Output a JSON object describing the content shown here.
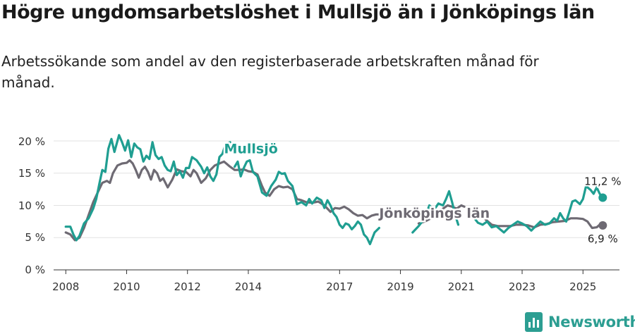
{
  "header": {
    "title": "Högre ungdomsarbetslöshet i Mullsjö än i Jönköpings län",
    "subtitle": "Arbetssökande som andel av den registerbaserade arbetskraften månad för månad."
  },
  "brand": {
    "name": "Newsworthy",
    "icon": "bar-chart-icon",
    "color": "#2c9e92"
  },
  "chart_data": {
    "type": "line",
    "title": "Högre ungdomsarbetslöshet i Mullsjö än i Jönköpings län",
    "subtitle": "Arbetssökande som andel av den registerbaserade arbetskraften månad för månad.",
    "xlabel": "",
    "ylabel": "",
    "x_ticks": [
      "2008",
      "2010",
      "2012",
      "2014",
      "2017",
      "2019",
      "2021",
      "2023",
      "2025"
    ],
    "y_ticks": [
      "0 %",
      "5 %",
      "10 %",
      "15 %",
      "20 %"
    ],
    "xlim": [
      2007.6,
      2026.2
    ],
    "ylim": [
      0,
      20
    ],
    "grid": true,
    "series": [
      {
        "name": "Mullsjö",
        "color": "#1f9e91",
        "end_label": "11,2 %",
        "points": [
          [
            2008.0,
            6.7
          ],
          [
            2008.15,
            6.7
          ],
          [
            2008.25,
            5.5
          ],
          [
            2008.35,
            4.6
          ],
          [
            2008.45,
            5.3
          ],
          [
            2008.6,
            7.2
          ],
          [
            2008.75,
            8.0
          ],
          [
            2008.9,
            9.5
          ],
          [
            2009.0,
            11.0
          ],
          [
            2009.1,
            13.3
          ],
          [
            2009.2,
            15.5
          ],
          [
            2009.3,
            15.2
          ],
          [
            2009.4,
            18.8
          ],
          [
            2009.5,
            20.3
          ],
          [
            2009.6,
            18.3
          ],
          [
            2009.75,
            20.9
          ],
          [
            2009.85,
            19.8
          ],
          [
            2009.95,
            18.5
          ],
          [
            2010.05,
            20.1
          ],
          [
            2010.15,
            17.5
          ],
          [
            2010.25,
            19.6
          ],
          [
            2010.35,
            19.0
          ],
          [
            2010.45,
            18.7
          ],
          [
            2010.55,
            16.8
          ],
          [
            2010.65,
            17.7
          ],
          [
            2010.75,
            17.2
          ],
          [
            2010.85,
            19.8
          ],
          [
            2010.95,
            17.8
          ],
          [
            2011.05,
            17.2
          ],
          [
            2011.15,
            17.5
          ],
          [
            2011.25,
            16.2
          ],
          [
            2011.35,
            15.5
          ],
          [
            2011.45,
            15.3
          ],
          [
            2011.55,
            16.8
          ],
          [
            2011.65,
            14.7
          ],
          [
            2011.75,
            15.3
          ],
          [
            2011.85,
            14.3
          ],
          [
            2011.95,
            15.8
          ],
          [
            2012.05,
            15.8
          ],
          [
            2012.15,
            17.5
          ],
          [
            2012.3,
            17.0
          ],
          [
            2012.45,
            16.0
          ],
          [
            2012.55,
            15.0
          ],
          [
            2012.65,
            15.9
          ],
          [
            2012.75,
            14.5
          ],
          [
            2012.85,
            13.8
          ],
          [
            2012.95,
            14.8
          ],
          [
            2013.05,
            17.5
          ],
          [
            2013.15,
            18.0
          ],
          [
            2013.25,
            19.5
          ],
          [
            2013.4,
            19.8
          ]
        ],
        "points_2": [
          [
            2013.55,
            16.0
          ],
          [
            2013.65,
            16.8
          ],
          [
            2013.75,
            14.5
          ],
          [
            2013.85,
            15.8
          ],
          [
            2013.95,
            16.8
          ],
          [
            2014.05,
            17.0
          ],
          [
            2014.15,
            15.2
          ],
          [
            2014.3,
            14.5
          ],
          [
            2014.45,
            12.0
          ],
          [
            2014.6,
            11.5
          ],
          [
            2014.75,
            13.0
          ],
          [
            2014.9,
            14.0
          ],
          [
            2015.0,
            15.2
          ],
          [
            2015.1,
            14.9
          ],
          [
            2015.2,
            15.0
          ],
          [
            2015.3,
            13.8
          ],
          [
            2015.45,
            13.0
          ],
          [
            2015.6,
            10.2
          ],
          [
            2015.75,
            10.5
          ],
          [
            2015.9,
            10.0
          ],
          [
            2016.0,
            11.0
          ],
          [
            2016.1,
            10.3
          ],
          [
            2016.25,
            11.2
          ],
          [
            2016.4,
            10.8
          ],
          [
            2016.5,
            9.6
          ],
          [
            2016.6,
            10.8
          ],
          [
            2016.7,
            10.0
          ],
          [
            2016.8,
            8.8
          ],
          [
            2016.9,
            8.2
          ],
          [
            2017.0,
            7.0
          ],
          [
            2017.1,
            6.5
          ],
          [
            2017.2,
            7.2
          ],
          [
            2017.3,
            7.0
          ],
          [
            2017.4,
            6.3
          ],
          [
            2017.5,
            6.8
          ],
          [
            2017.6,
            7.5
          ],
          [
            2017.7,
            7.0
          ],
          [
            2017.8,
            5.5
          ],
          [
            2017.9,
            5.0
          ],
          [
            2018.0,
            4.0
          ],
          [
            2018.15,
            5.8
          ],
          [
            2018.3,
            6.5
          ]
        ],
        "points_3": [
          [
            2019.4,
            5.8
          ],
          [
            2019.6,
            6.8
          ],
          [
            2019.8,
            8.0
          ],
          [
            2019.95,
            10.0
          ],
          [
            2020.1,
            9.3
          ],
          [
            2020.25,
            10.3
          ],
          [
            2020.4,
            10.0
          ],
          [
            2020.5,
            11.0
          ],
          [
            2020.6,
            12.2
          ],
          [
            2020.7,
            10.5
          ],
          [
            2020.8,
            8.5
          ],
          [
            2020.9,
            7.0
          ]
        ],
        "points_4": [
          [
            2021.4,
            8.2
          ],
          [
            2021.55,
            7.3
          ],
          [
            2021.7,
            7.0
          ],
          [
            2021.85,
            7.5
          ],
          [
            2022.0,
            6.6
          ],
          [
            2022.15,
            6.8
          ],
          [
            2022.3,
            6.2
          ],
          [
            2022.4,
            5.8
          ],
          [
            2022.55,
            6.5
          ],
          [
            2022.7,
            7.0
          ],
          [
            2022.85,
            7.5
          ],
          [
            2023.0,
            7.2
          ],
          [
            2023.15,
            6.8
          ],
          [
            2023.3,
            6.1
          ],
          [
            2023.45,
            6.8
          ],
          [
            2023.6,
            7.5
          ],
          [
            2023.75,
            7.0
          ],
          [
            2023.9,
            7.2
          ],
          [
            2024.05,
            8.0
          ],
          [
            2024.15,
            7.6
          ],
          [
            2024.25,
            8.8
          ],
          [
            2024.35,
            8.0
          ],
          [
            2024.45,
            7.5
          ],
          [
            2024.55,
            9.0
          ],
          [
            2024.65,
            10.6
          ],
          [
            2024.75,
            10.8
          ],
          [
            2024.9,
            10.2
          ],
          [
            2025.0,
            11.0
          ],
          [
            2025.1,
            13.0
          ],
          [
            2025.25,
            12.4
          ],
          [
            2025.35,
            11.8
          ],
          [
            2025.45,
            12.8
          ],
          [
            2025.55,
            11.8
          ],
          [
            2025.65,
            11.2
          ]
        ]
      },
      {
        "name": "Jönköpings län",
        "color": "#6e6a73",
        "end_label": "6,9 %",
        "points": [
          [
            2008.0,
            5.8
          ],
          [
            2008.15,
            5.5
          ],
          [
            2008.3,
            4.6
          ],
          [
            2008.45,
            5.0
          ],
          [
            2008.6,
            6.5
          ],
          [
            2008.75,
            8.5
          ],
          [
            2008.9,
            10.5
          ],
          [
            2009.05,
            12.0
          ],
          [
            2009.2,
            13.5
          ],
          [
            2009.35,
            13.8
          ],
          [
            2009.45,
            13.5
          ],
          [
            2009.55,
            15.0
          ],
          [
            2009.7,
            16.2
          ],
          [
            2009.85,
            16.5
          ],
          [
            2010.0,
            16.6
          ],
          [
            2010.1,
            17.0
          ],
          [
            2010.2,
            16.5
          ],
          [
            2010.3,
            15.5
          ],
          [
            2010.4,
            14.3
          ],
          [
            2010.5,
            15.5
          ],
          [
            2010.6,
            16.0
          ],
          [
            2010.7,
            15.2
          ],
          [
            2010.8,
            14.0
          ],
          [
            2010.9,
            15.5
          ],
          [
            2011.0,
            15.0
          ],
          [
            2011.1,
            13.8
          ],
          [
            2011.2,
            14.2
          ],
          [
            2011.35,
            12.8
          ],
          [
            2011.5,
            14.0
          ],
          [
            2011.65,
            15.6
          ],
          [
            2011.8,
            15.3
          ],
          [
            2011.95,
            15.2
          ],
          [
            2012.1,
            14.5
          ],
          [
            2012.2,
            15.5
          ],
          [
            2012.3,
            15.0
          ],
          [
            2012.45,
            13.5
          ],
          [
            2012.6,
            14.2
          ],
          [
            2012.75,
            15.5
          ],
          [
            2012.9,
            16.2
          ],
          [
            2013.05,
            16.5
          ],
          [
            2013.2,
            16.8
          ],
          [
            2013.4,
            16.0
          ],
          [
            2013.55,
            15.5
          ],
          [
            2013.7,
            15.5
          ],
          [
            2013.85,
            15.6
          ],
          [
            2014.0,
            15.3
          ],
          [
            2014.15,
            15.2
          ],
          [
            2014.3,
            14.8
          ],
          [
            2014.45,
            13.0
          ],
          [
            2014.55,
            12.0
          ],
          [
            2014.7,
            11.5
          ],
          [
            2014.85,
            12.5
          ],
          [
            2015.0,
            13.0
          ],
          [
            2015.15,
            12.8
          ],
          [
            2015.3,
            12.9
          ],
          [
            2015.45,
            12.5
          ],
          [
            2015.6,
            11.0
          ],
          [
            2015.75,
            10.8
          ],
          [
            2015.9,
            10.5
          ],
          [
            2016.1,
            10.4
          ],
          [
            2016.3,
            10.6
          ],
          [
            2016.5,
            10.0
          ],
          [
            2016.7,
            9.0
          ],
          [
            2016.85,
            9.6
          ],
          [
            2017.0,
            9.5
          ],
          [
            2017.15,
            9.8
          ],
          [
            2017.3,
            9.4
          ],
          [
            2017.45,
            8.8
          ],
          [
            2017.6,
            8.4
          ],
          [
            2017.75,
            8.5
          ],
          [
            2017.9,
            8.0
          ],
          [
            2018.05,
            8.4
          ],
          [
            2018.2,
            8.6
          ],
          [
            2018.4,
            8.6
          ]
        ],
        "points_2": [
          [
            2019.6,
            7.2
          ],
          [
            2019.8,
            7.5
          ],
          [
            2020.0,
            8.0
          ],
          [
            2020.2,
            8.5
          ],
          [
            2020.4,
            9.5
          ],
          [
            2020.55,
            10.0
          ],
          [
            2020.7,
            9.8
          ],
          [
            2020.85,
            9.5
          ],
          [
            2021.0,
            10.0
          ],
          [
            2021.1,
            9.8
          ]
        ],
        "points_3": [
          [
            2021.8,
            7.8
          ],
          [
            2022.0,
            7.0
          ],
          [
            2022.2,
            6.8
          ],
          [
            2022.4,
            6.8
          ],
          [
            2022.6,
            6.8
          ],
          [
            2022.8,
            7.0
          ],
          [
            2023.0,
            7.0
          ],
          [
            2023.2,
            6.9
          ],
          [
            2023.4,
            6.6
          ],
          [
            2023.6,
            7.0
          ],
          [
            2023.8,
            7.1
          ],
          [
            2024.0,
            7.4
          ],
          [
            2024.2,
            7.5
          ],
          [
            2024.4,
            7.6
          ],
          [
            2024.6,
            8.0
          ],
          [
            2024.8,
            8.0
          ],
          [
            2025.0,
            7.9
          ],
          [
            2025.15,
            7.5
          ],
          [
            2025.3,
            6.5
          ],
          [
            2025.45,
            6.6
          ],
          [
            2025.55,
            7.0
          ],
          [
            2025.65,
            6.9
          ]
        ]
      }
    ],
    "annotations": [
      {
        "text": "Mullsjö",
        "series": "Mullsjö",
        "x": 2013.2,
        "y": 18.1
      },
      {
        "text": "Jönköpings län",
        "series": "Jönköpings län",
        "x": 2018.3,
        "y": 8.1
      }
    ]
  }
}
